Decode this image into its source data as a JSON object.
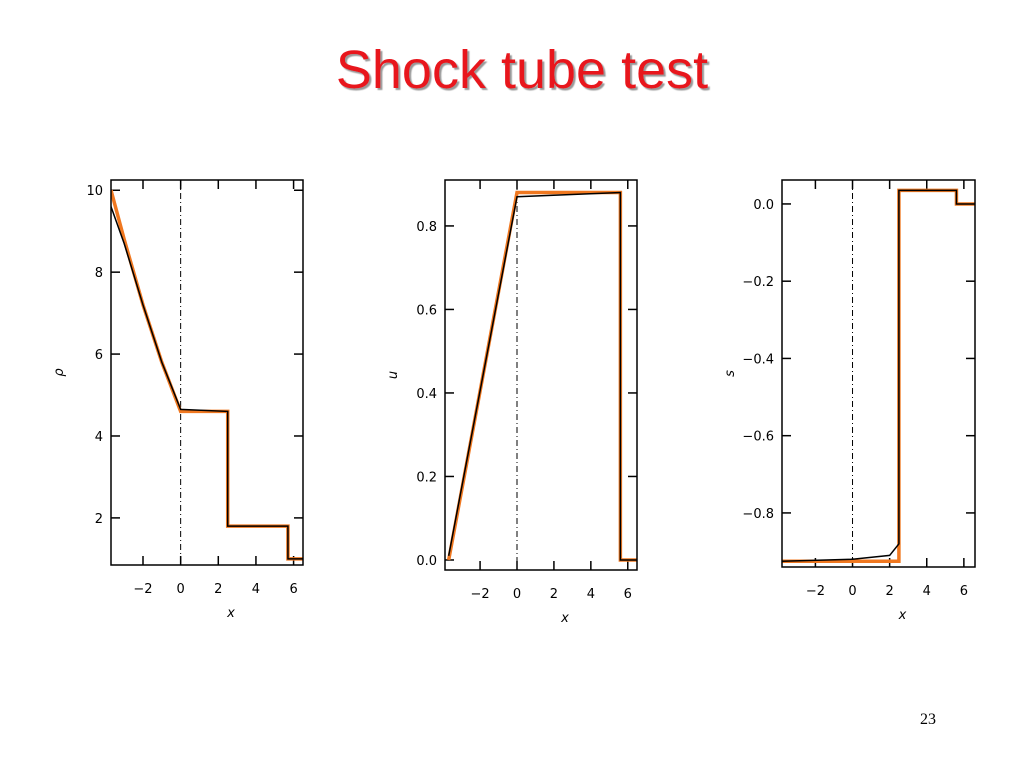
{
  "title": "Shock tube test",
  "page_number": "23",
  "chart_data": [
    {
      "type": "line",
      "xlabel": "x",
      "ylabel": "ρ",
      "x": [
        -3.7,
        -3,
        -2,
        -1,
        0,
        2.5,
        2.5,
        5.7,
        5.7,
        6.5
      ],
      "series": [
        {
          "color": "#f07820",
          "values": [
            10,
            8.8,
            7.2,
            5.8,
            4.6,
            4.6,
            1.8,
            1.8,
            1.0,
            1.0
          ]
        },
        {
          "color": "#000000",
          "values": [
            9.6,
            8.7,
            7.2,
            5.8,
            4.65,
            4.6,
            1.8,
            1.8,
            1.0,
            1.0
          ]
        }
      ],
      "xlim": [
        -3.7,
        6.5
      ],
      "ylim": [
        0.85,
        10.25
      ],
      "xticks": [
        {
          "value": -2,
          "label": "−2"
        },
        0,
        2,
        4,
        6
      ],
      "yticks": [
        2,
        4,
        6,
        8,
        10
      ],
      "vline": 0
    },
    {
      "type": "line",
      "xlabel": "x",
      "ylabel": "u",
      "x": [
        -3.7,
        0,
        5.6,
        5.6,
        6.5
      ],
      "series": [
        {
          "color": "#f07820",
          "values": [
            0,
            0.88,
            0.88,
            0,
            0
          ]
        },
        {
          "color": "#000000",
          "values": [
            0.01,
            0.87,
            0.88,
            0,
            0
          ]
        }
      ],
      "xlim": [
        -3.9,
        6.5
      ],
      "ylim": [
        -0.024,
        0.91
      ],
      "xticks": [
        {
          "value": -2,
          "label": "−2"
        },
        0,
        2,
        4,
        6
      ],
      "yticks": [
        {
          "value": 0,
          "label": "0.0"
        },
        {
          "value": 0.2,
          "label": "0.2"
        },
        {
          "value": 0.4,
          "label": "0.4"
        },
        {
          "value": 0.6,
          "label": "0.6"
        },
        {
          "value": 0.8,
          "label": "0.8"
        }
      ],
      "vline": 0
    },
    {
      "type": "line",
      "xlabel": "x",
      "ylabel": "s",
      "x": [
        -3.8,
        0,
        2.0,
        2.5,
        2.5,
        5.6,
        5.6,
        6.6
      ],
      "series": [
        {
          "color": "#f07820",
          "values": [
            -0.925,
            -0.925,
            -0.925,
            -0.925,
            0.035,
            0.035,
            0,
            0
          ]
        },
        {
          "color": "#000000",
          "values": [
            -0.925,
            -0.92,
            -0.91,
            -0.88,
            0.035,
            0.035,
            0,
            0
          ]
        }
      ],
      "xlim": [
        -3.8,
        6.6
      ],
      "ylim": [
        -0.94,
        0.062
      ],
      "xticks": [
        {
          "value": -2,
          "label": "−2"
        },
        0,
        2,
        4,
        6
      ],
      "yticks": [
        {
          "value": -0.8,
          "label": "−0.8"
        },
        {
          "value": -0.6,
          "label": "−0.6"
        },
        {
          "value": -0.4,
          "label": "−0.4"
        },
        {
          "value": -0.2,
          "label": "−0.2"
        },
        {
          "value": 0,
          "label": "0.0"
        }
      ],
      "vline": 0
    }
  ]
}
